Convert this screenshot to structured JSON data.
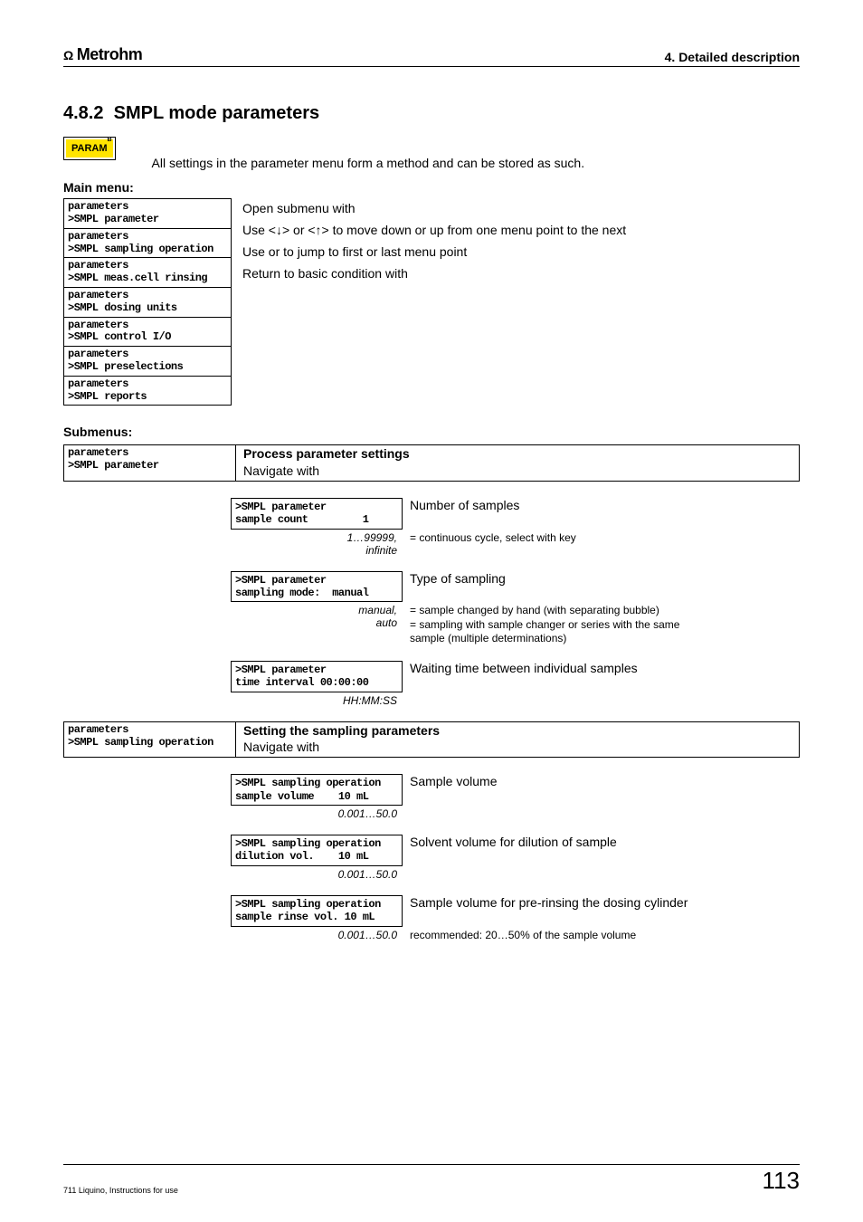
{
  "header": {
    "brand": "Metrohm",
    "chapter": "4. Detailed description"
  },
  "section": {
    "number": "4.8.2",
    "title": "SMPL mode parameters",
    "param_label": "PARAM",
    "small_b": "B"
  },
  "intro": "All settings in the parameter menu form a method and can be stored as such.",
  "main_menu": {
    "label": "Main menu:",
    "items": [
      {
        "l1": "parameters",
        "l2": ">SMPL parameter"
      },
      {
        "l1": "parameters",
        "l2": ">SMPL sampling operation"
      },
      {
        "l1": "parameters",
        "l2": ">SMPL meas.cell rinsing"
      },
      {
        "l1": "parameters",
        "l2": ">SMPL dosing units"
      },
      {
        "l1": "parameters",
        "l2": ">SMPL control I/O"
      },
      {
        "l1": "parameters",
        "l2": ">SMPL preselections"
      },
      {
        "l1": "parameters",
        "l2": ">SMPL reports"
      }
    ],
    "desc": [
      "Open submenu with <ENTER>",
      "Use <↓> or <↑> to move down or up from one menu point to the next",
      "Use <HOME> or <END> to jump to first or last menu point",
      "Return to basic condition with <QUIT>"
    ]
  },
  "submenus_label": "Submenus:",
  "submenus": [
    {
      "header": {
        "lcd_l1": "parameters",
        "lcd_l2": ">SMPL parameter",
        "title": "Process parameter  settings",
        "nav": "Navigate with <ENTER>"
      },
      "params": [
        {
          "lcd_l1": ">SMPL parameter",
          "lcd_l2": "sample count         1",
          "desc": "Number of samples",
          "range": "1…99999,\ninfinite",
          "range_desc": "= continuous cycle, select with <CLEAR> key"
        },
        {
          "lcd_l1": ">SMPL parameter",
          "lcd_l2": "sampling mode:  manual",
          "desc": "Type of sampling",
          "range": "manual,\nauto",
          "range_desc": "= sample changed by hand (with separating bubble)\n= sampling with sample changer or series with the same\n   sample (multiple determinations)"
        },
        {
          "lcd_l1": ">SMPL parameter",
          "lcd_l2": "time interval 00:00:00",
          "desc": "Waiting time between individual samples",
          "range": "HH:MM:SS",
          "range_desc": ""
        }
      ]
    },
    {
      "header": {
        "lcd_l1": "parameters",
        "lcd_l2": ">SMPL sampling operation",
        "title": "Setting the sampling parameters",
        "nav": "Navigate with <ENTER>"
      },
      "params": [
        {
          "lcd_l1": ">SMPL sampling operation",
          "lcd_l2": "sample volume    10 mL",
          "desc": "Sample volume",
          "range": "0.001…50.0",
          "range_desc": ""
        },
        {
          "lcd_l1": ">SMPL sampling operation",
          "lcd_l2": "dilution vol.    10 mL",
          "desc": "Solvent volume for dilution of sample",
          "range": "0.001…50.0",
          "range_desc": ""
        },
        {
          "lcd_l1": ">SMPL sampling operation",
          "lcd_l2": "sample rinse vol. 10 mL",
          "desc": "Sample volume for pre-rinsing the dosing cylinder",
          "range": "0.001…50.0",
          "range_desc": "recommended: 20…50% of the sample volume"
        }
      ]
    }
  ],
  "footer": {
    "left": "711 Liquino, Instructions for use",
    "page": "113"
  }
}
